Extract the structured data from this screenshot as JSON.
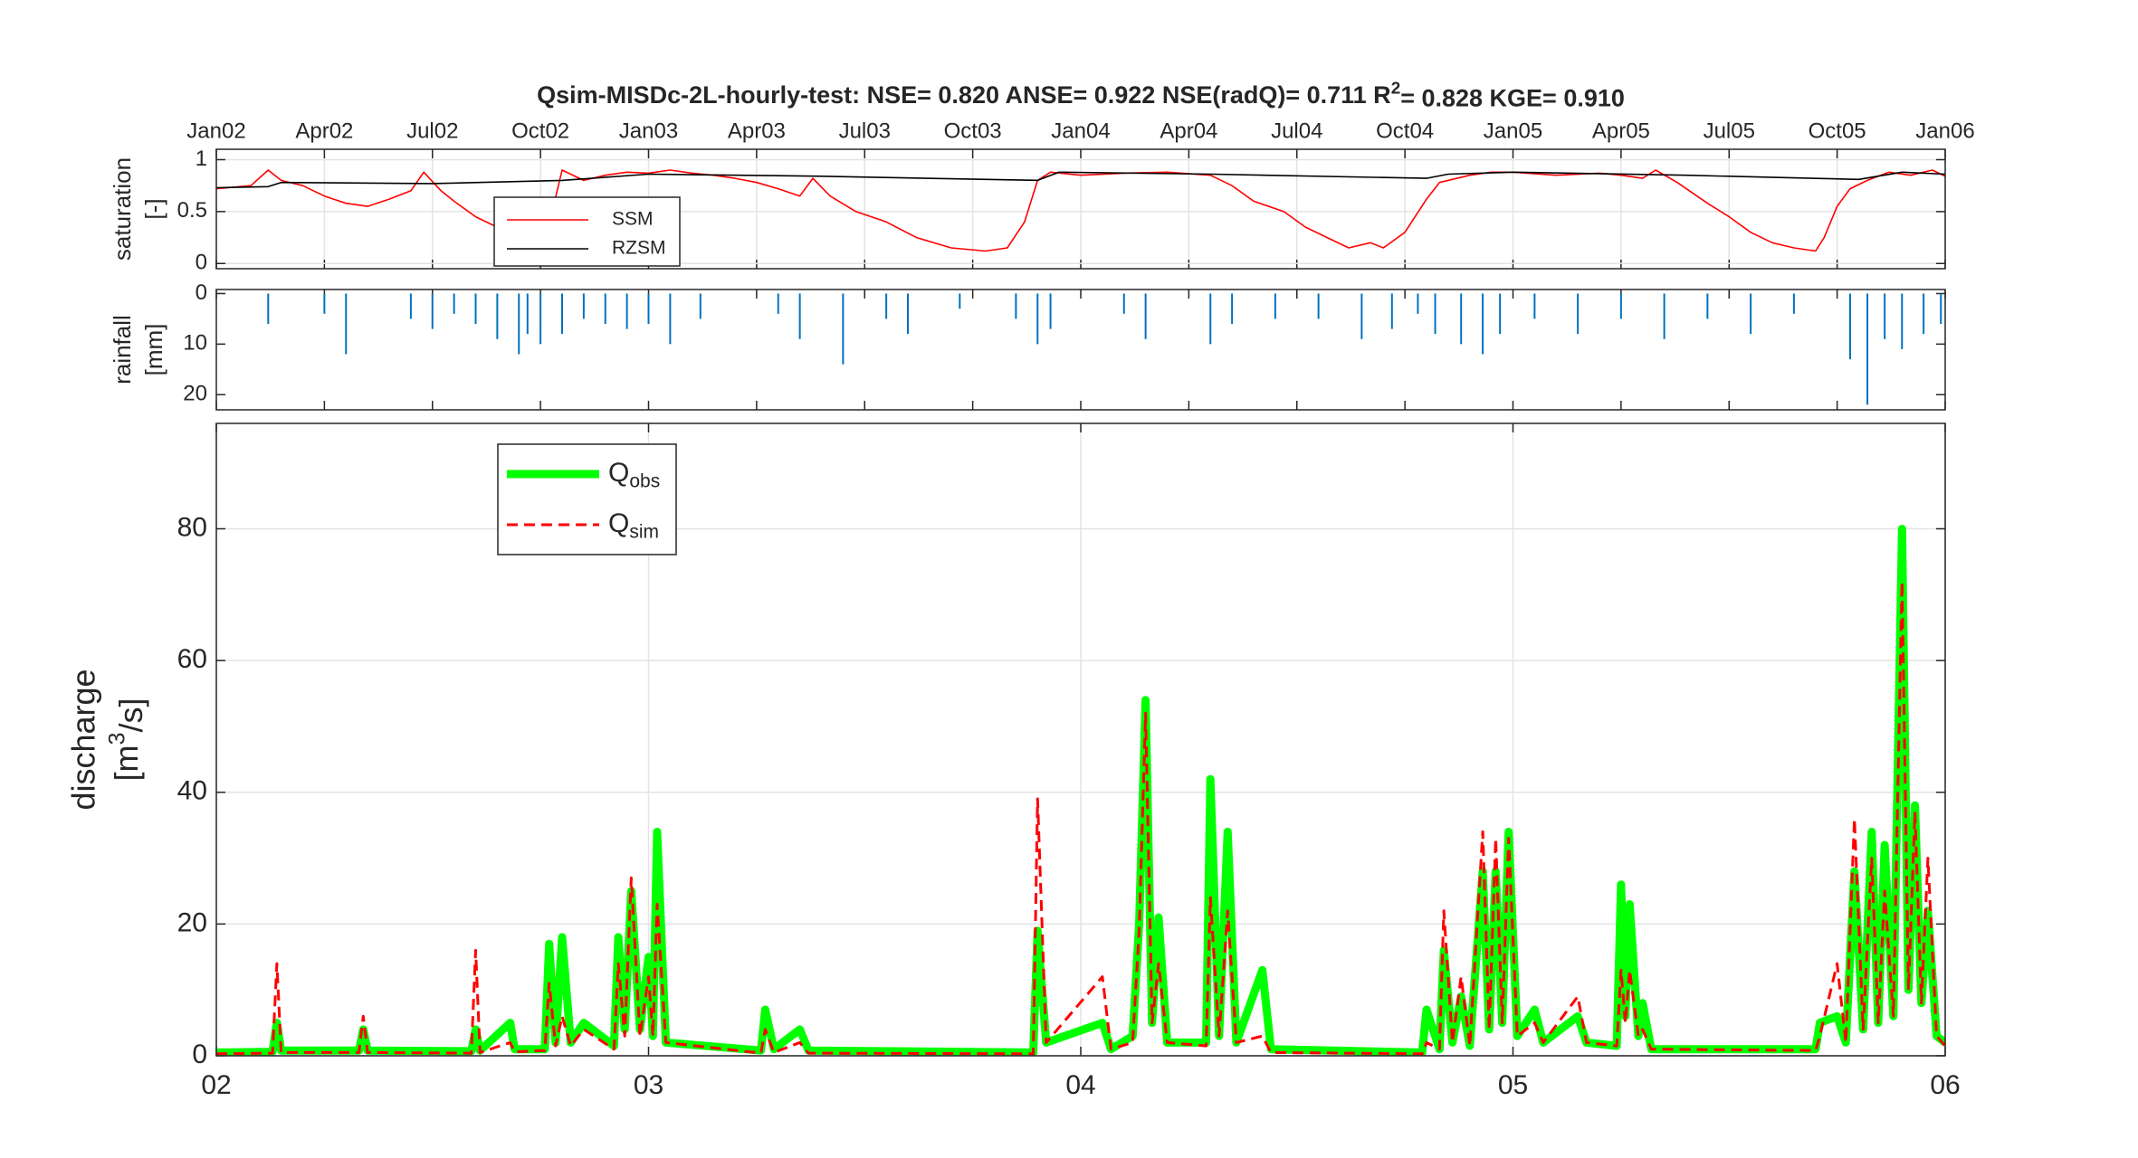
{
  "chart_data": [
    {
      "type": "line",
      "title": "Qsim-MISDc-2L-hourly-test: NSE= 0.820 ANSE= 0.922 NSE(radQ)= 0.711 R2= 0.828 KGE= 0.910",
      "ylabel": [
        "saturation",
        "[-]"
      ],
      "xlim": [
        2002,
        2006
      ],
      "xticks": [
        {
          "value": 2002,
          "label": "Jan02"
        },
        {
          "value": 2002.25,
          "label": "Apr02"
        },
        {
          "value": 2002.5,
          "label": "Jul02"
        },
        {
          "value": 2002.75,
          "label": "Oct02"
        },
        {
          "value": 2003,
          "label": "Jan03"
        },
        {
          "value": 2003.25,
          "label": "Apr03"
        },
        {
          "value": 2003.5,
          "label": "Jul03"
        },
        {
          "value": 2003.75,
          "label": "Oct03"
        },
        {
          "value": 2004,
          "label": "Jan04"
        },
        {
          "value": 2004.25,
          "label": "Apr04"
        },
        {
          "value": 2004.5,
          "label": "Jul04"
        },
        {
          "value": 2004.75,
          "label": "Oct04"
        },
        {
          "value": 2005,
          "label": "Jan05"
        },
        {
          "value": 2005.25,
          "label": "Apr05"
        },
        {
          "value": 2005.5,
          "label": "Jul05"
        },
        {
          "value": 2005.75,
          "label": "Oct05"
        },
        {
          "value": 2006,
          "label": "Jan06"
        }
      ],
      "ylim": [
        -0.05,
        1.1
      ],
      "yticks": [
        0,
        0.5,
        1
      ],
      "grid": true,
      "series": [
        {
          "name": "SSM",
          "color": "#ff0000",
          "x": [
            2002.0,
            2002.08,
            2002.12,
            2002.15,
            2002.2,
            2002.25,
            2002.3,
            2002.35,
            2002.4,
            2002.45,
            2002.48,
            2002.52,
            2002.55,
            2002.6,
            2002.65,
            2002.68,
            2002.72,
            2002.75,
            2002.78,
            2002.8,
            2002.85,
            2002.9,
            2002.95,
            2003.0,
            2003.05,
            2003.1,
            2003.15,
            2003.2,
            2003.25,
            2003.3,
            2003.35,
            2003.38,
            2003.42,
            2003.48,
            2003.55,
            2003.62,
            2003.7,
            2003.78,
            2003.83,
            2003.87,
            2003.9,
            2003.93,
            2004.0,
            2004.1,
            2004.2,
            2004.3,
            2004.35,
            2004.4,
            2004.47,
            2004.52,
            2004.57,
            2004.62,
            2004.67,
            2004.7,
            2004.75,
            2004.8,
            2004.83,
            2004.9,
            2004.95,
            2005.0,
            2005.1,
            2005.2,
            2005.25,
            2005.3,
            2005.33,
            2005.38,
            2005.45,
            2005.5,
            2005.55,
            2005.6,
            2005.65,
            2005.7,
            2005.72,
            2005.75,
            2005.78,
            2005.82,
            2005.87,
            2005.92,
            2005.97,
            2006.0
          ],
          "values": [
            0.72,
            0.75,
            0.9,
            0.8,
            0.75,
            0.65,
            0.58,
            0.55,
            0.62,
            0.7,
            0.88,
            0.7,
            0.6,
            0.45,
            0.35,
            0.25,
            0.22,
            0.45,
            0.55,
            0.9,
            0.8,
            0.85,
            0.88,
            0.87,
            0.9,
            0.87,
            0.85,
            0.82,
            0.78,
            0.72,
            0.65,
            0.82,
            0.65,
            0.5,
            0.4,
            0.25,
            0.15,
            0.12,
            0.15,
            0.4,
            0.8,
            0.88,
            0.85,
            0.87,
            0.88,
            0.85,
            0.75,
            0.6,
            0.5,
            0.35,
            0.25,
            0.15,
            0.2,
            0.15,
            0.3,
            0.62,
            0.78,
            0.85,
            0.88,
            0.88,
            0.85,
            0.87,
            0.85,
            0.82,
            0.9,
            0.78,
            0.58,
            0.45,
            0.3,
            0.2,
            0.15,
            0.12,
            0.25,
            0.55,
            0.72,
            0.8,
            0.88,
            0.85,
            0.9,
            0.84
          ]
        },
        {
          "name": "RZSM",
          "color": "#000000",
          "x": [
            2002.0,
            2002.12,
            2002.15,
            2002.5,
            2002.8,
            2003.0,
            2003.4,
            2003.9,
            2003.95,
            2004.3,
            2004.8,
            2004.85,
            2005.0,
            2005.4,
            2005.8,
            2005.9,
            2006.0
          ],
          "values": [
            0.73,
            0.74,
            0.78,
            0.77,
            0.8,
            0.86,
            0.84,
            0.8,
            0.88,
            0.86,
            0.82,
            0.86,
            0.88,
            0.85,
            0.81,
            0.88,
            0.86
          ]
        }
      ]
    },
    {
      "type": "bar",
      "ylabel": [
        "rainfall",
        "[mm]"
      ],
      "xlim": [
        2002,
        2006
      ],
      "ylim": [
        23,
        -0.8
      ],
      "yticks": [
        0,
        10,
        20
      ],
      "color": "#0072bd",
      "x": [
        2002.12,
        2002.25,
        2002.3,
        2002.45,
        2002.5,
        2002.55,
        2002.6,
        2002.65,
        2002.7,
        2002.72,
        2002.75,
        2002.8,
        2002.85,
        2002.9,
        2002.95,
        2003.0,
        2003.05,
        2003.12,
        2003.3,
        2003.35,
        2003.45,
        2003.55,
        2003.6,
        2003.72,
        2003.85,
        2003.9,
        2003.93,
        2004.1,
        2004.15,
        2004.3,
        2004.35,
        2004.45,
        2004.55,
        2004.65,
        2004.72,
        2004.78,
        2004.82,
        2004.88,
        2004.93,
        2004.97,
        2005.05,
        2005.15,
        2005.25,
        2005.35,
        2005.45,
        2005.55,
        2005.65,
        2005.78,
        2005.82,
        2005.86,
        2005.9,
        2005.95,
        2005.99
      ],
      "values": [
        6,
        4,
        12,
        5,
        7,
        4,
        6,
        9,
        12,
        8,
        10,
        8,
        5,
        6,
        7,
        6,
        10,
        5,
        4,
        9,
        14,
        5,
        8,
        3,
        5,
        10,
        7,
        4,
        9,
        10,
        6,
        5,
        5,
        9,
        7,
        4,
        8,
        10,
        12,
        8,
        5,
        8,
        5,
        9,
        5,
        8,
        4,
        13,
        22,
        9,
        11,
        8,
        6
      ]
    },
    {
      "type": "line",
      "ylabel": [
        "discharge",
        "[m3/s]"
      ],
      "xlim": [
        2002,
        2006
      ],
      "xticks": [
        {
          "value": 2002,
          "label": "02"
        },
        {
          "value": 2003,
          "label": "03"
        },
        {
          "value": 2004,
          "label": "04"
        },
        {
          "value": 2005,
          "label": "05"
        },
        {
          "value": 2006,
          "label": "06"
        }
      ],
      "ylim": [
        0,
        96
      ],
      "yticks": [
        0,
        20,
        40,
        60,
        80
      ],
      "grid": true,
      "x": [
        2002.0,
        2002.13,
        2002.14,
        2002.15,
        2002.33,
        2002.34,
        2002.35,
        2002.59,
        2002.6,
        2002.61,
        2002.68,
        2002.69,
        2002.76,
        2002.77,
        2002.785,
        2002.8,
        2002.82,
        2002.85,
        2002.92,
        2002.93,
        2002.945,
        2002.96,
        2002.98,
        2003.0,
        2003.01,
        2003.02,
        2003.04,
        2003.26,
        2003.27,
        2003.29,
        2003.35,
        2003.37,
        2003.89,
        2003.9,
        2003.92,
        2004.05,
        2004.07,
        2004.12,
        2004.135,
        2004.15,
        2004.165,
        2004.18,
        2004.2,
        2004.29,
        2004.3,
        2004.32,
        2004.34,
        2004.36,
        2004.42,
        2004.44,
        2004.79,
        2004.8,
        2004.83,
        2004.84,
        2004.86,
        2004.88,
        2004.9,
        2004.93,
        2004.945,
        2004.96,
        2004.975,
        2004.99,
        2005.01,
        2005.05,
        2005.07,
        2005.15,
        2005.17,
        2005.24,
        2005.25,
        2005.26,
        2005.27,
        2005.29,
        2005.3,
        2005.32,
        2005.7,
        2005.71,
        2005.75,
        2005.77,
        2005.79,
        2005.81,
        2005.83,
        2005.845,
        2005.86,
        2005.88,
        2005.9,
        2005.915,
        2005.93,
        2005.945,
        2005.96,
        2005.98,
        2006.0
      ],
      "series": [
        {
          "name": "Qobs",
          "color": "#00ff00",
          "line_style": "solid",
          "values": [
            0.5,
            0.6,
            5,
            0.8,
            0.8,
            4,
            0.8,
            0.7,
            4,
            0.8,
            5,
            1,
            1,
            17,
            2,
            18,
            2,
            5,
            1.5,
            18,
            4,
            25,
            4,
            15,
            3,
            34,
            2,
            0.8,
            7,
            1,
            4,
            0.8,
            0.5,
            19,
            2,
            5,
            1,
            3,
            20,
            54,
            5,
            21,
            2,
            2,
            42,
            3,
            34,
            2,
            13,
            1,
            0.5,
            7,
            1,
            16,
            2,
            9,
            1.5,
            28,
            4,
            28,
            5,
            34,
            3,
            7,
            2,
            6,
            2,
            1.5,
            26,
            6,
            23,
            3,
            8,
            1,
            1,
            5,
            6,
            2,
            28,
            4,
            34,
            5,
            32,
            6,
            80,
            10,
            38,
            8,
            22,
            3,
            2
          ]
        },
        {
          "name": "Qsim",
          "color": "#ff0000",
          "line_style": "dashed",
          "values": [
            0.3,
            0.4,
            14,
            0.5,
            0.5,
            6,
            0.5,
            0.4,
            16,
            0.5,
            2,
            0.6,
            0.8,
            11,
            1.5,
            6,
            1.5,
            4,
            1,
            14,
            3,
            27,
            3,
            12,
            3,
            23,
            2,
            0.4,
            4,
            0.5,
            2,
            0.4,
            0.3,
            39,
            2,
            12,
            1,
            2,
            19,
            52,
            5,
            14,
            2,
            1.5,
            24,
            3,
            22,
            2,
            3,
            0.5,
            0.3,
            2,
            1,
            22,
            2,
            12,
            1.5,
            34,
            4,
            33,
            5,
            33,
            3,
            5,
            2,
            9,
            2,
            1.5,
            13,
            5,
            13,
            3,
            4,
            1,
            0.8,
            3,
            14,
            2,
            36,
            4,
            30,
            5,
            25,
            6,
            72,
            10,
            37,
            8,
            30,
            3,
            1.5
          ]
        }
      ]
    }
  ]
}
